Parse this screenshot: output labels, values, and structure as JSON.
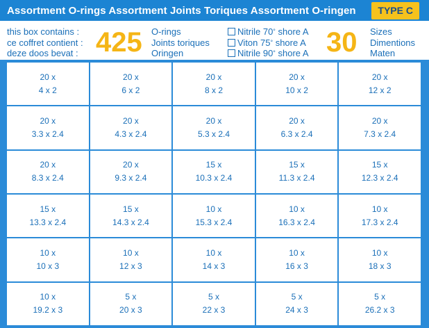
{
  "header": {
    "title": "Assortment O-rings Assortment Joints Toriques Assortment O-ringen",
    "type_label": "TYPE C"
  },
  "info": {
    "contains_lines": [
      "this box contains :",
      "ce coffret contient :",
      "deze doos bevat :"
    ],
    "ring_count": "425",
    "ring_labels": [
      "O-rings",
      "Joints toriques",
      "Oringen"
    ],
    "materials": [
      {
        "label": "Nitrile 70",
        "deg": "°",
        "suffix": " shore A",
        "checked": false
      },
      {
        "label": "Viton 75",
        "deg": "°",
        "suffix": " shore A",
        "checked": false
      },
      {
        "label": "Nitrile 90",
        "deg": "°",
        "suffix": " shore A",
        "checked": false
      }
    ],
    "size_count": "30",
    "size_labels": [
      "Sizes",
      "Dimentions",
      "Maten"
    ]
  },
  "grid": {
    "cells": [
      {
        "qty": "20 x",
        "size": "4 x 2"
      },
      {
        "qty": "20 x",
        "size": "6 x 2"
      },
      {
        "qty": "20 x",
        "size": "8 x 2"
      },
      {
        "qty": "20 x",
        "size": "10 x 2"
      },
      {
        "qty": "20 x",
        "size": "12 x 2"
      },
      {
        "qty": "20 x",
        "size": "3.3 x 2.4"
      },
      {
        "qty": "20 x",
        "size": "4.3 x 2.4"
      },
      {
        "qty": "20 x",
        "size": "5.3 x 2.4"
      },
      {
        "qty": "20 x",
        "size": "6.3 x 2.4"
      },
      {
        "qty": "20 x",
        "size": "7.3 x 2.4"
      },
      {
        "qty": "20 x",
        "size": "8.3 x 2.4"
      },
      {
        "qty": "20 x",
        "size": "9.3 x 2.4"
      },
      {
        "qty": "15 x",
        "size": "10.3 x 2.4"
      },
      {
        "qty": "15 x",
        "size": "11.3 x 2.4"
      },
      {
        "qty": "15 x",
        "size": "12.3 x 2.4"
      },
      {
        "qty": "15 x",
        "size": "13.3 x 2.4"
      },
      {
        "qty": "15 x",
        "size": "14.3 x 2.4"
      },
      {
        "qty": "10 x",
        "size": "15.3 x 2.4"
      },
      {
        "qty": "10 x",
        "size": "16.3 x 2.4"
      },
      {
        "qty": "10 x",
        "size": "17.3 x 2.4"
      },
      {
        "qty": "10 x",
        "size": "10 x 3"
      },
      {
        "qty": "10 x",
        "size": "12 x 3"
      },
      {
        "qty": "10 x",
        "size": "14 x 3"
      },
      {
        "qty": "10 x",
        "size": "16 x 3"
      },
      {
        "qty": "10 x",
        "size": "18 x 3"
      },
      {
        "qty": "10 x",
        "size": "19.2 x 3"
      },
      {
        "qty": "5 x",
        "size": "20 x 3"
      },
      {
        "qty": "5 x",
        "size": "22 x 3"
      },
      {
        "qty": "5 x",
        "size": "24 x 3"
      },
      {
        "qty": "5 x",
        "size": "26.2 x 3"
      }
    ]
  },
  "colors": {
    "header_blue": "#1c84d3",
    "accent_yellow": "#f5b516",
    "text_blue": "#1a6fb8"
  }
}
